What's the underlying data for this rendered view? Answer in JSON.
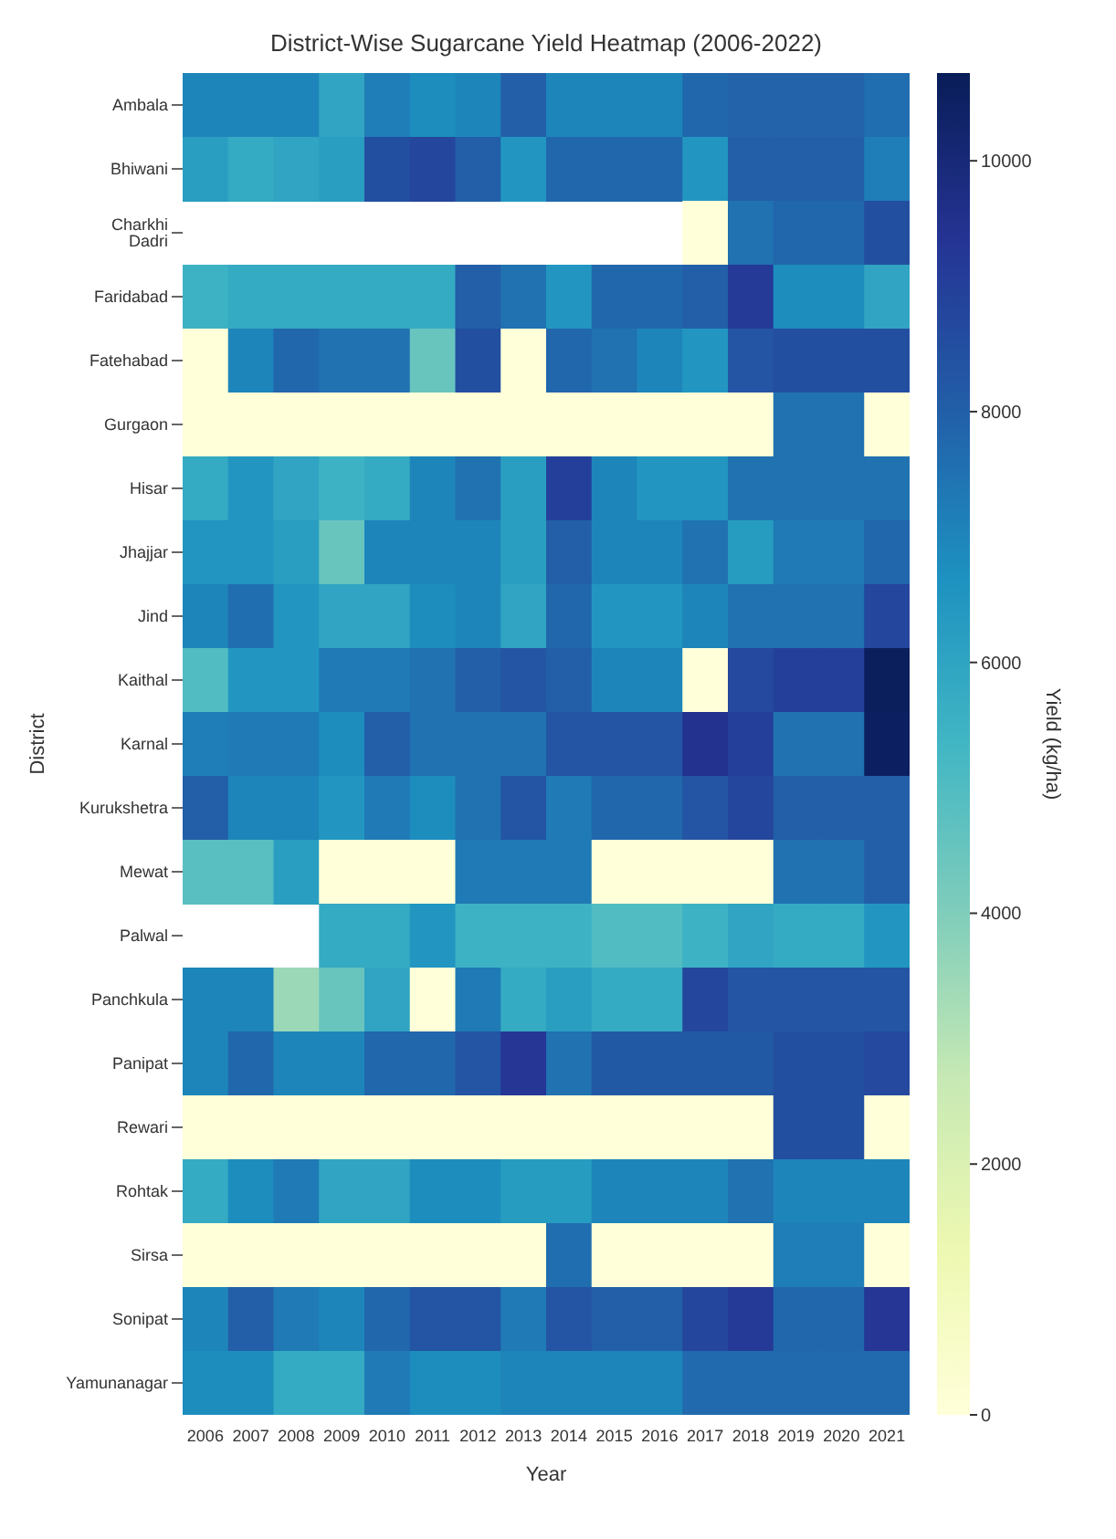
{
  "chart_data": {
    "type": "heatmap",
    "title": "District-Wise Sugarcane Yield Heatmap (2006-2022)",
    "xlabel": "Year",
    "ylabel": "District",
    "clabel": "Yield (kg/ha)",
    "categories": [
      "2006",
      "2007",
      "2008",
      "2009",
      "2010",
      "2011",
      "2012",
      "2013",
      "2014",
      "2015",
      "2016",
      "2017",
      "2018",
      "2019",
      "2020",
      "2021"
    ],
    "y_categories": [
      "Ambala",
      "Bhiwani",
      "Charkhi Dadri",
      "Faridabad",
      "Fatehabad",
      "Gurgaon",
      "Hisar",
      "Jhajjar",
      "Jind",
      "Kaithal",
      "Karnal",
      "Kurukshetra",
      "Mewat",
      "Palwal",
      "Panchkula",
      "Panipat",
      "Rewari",
      "Rohtak",
      "Sirsa",
      "Sonipat",
      "Yamunanagar"
    ],
    "cells": [
      [
        7000,
        7000,
        7000,
        6000,
        7200,
        6800,
        7000,
        8000,
        7000,
        7000,
        7000,
        7800,
        7900,
        7900,
        7900,
        7600
      ],
      [
        6200,
        5800,
        6000,
        6200,
        8500,
        8800,
        8000,
        6500,
        7800,
        7800,
        7800,
        6500,
        8000,
        8000,
        8000,
        7200
      ],
      [
        null,
        null,
        null,
        null,
        null,
        null,
        null,
        null,
        null,
        null,
        null,
        0,
        7500,
        7800,
        7800,
        8500
      ],
      [
        5500,
        5800,
        5800,
        5800,
        5800,
        5800,
        8000,
        7500,
        6500,
        7800,
        7800,
        8000,
        9200,
        6800,
        6800,
        6000
      ],
      [
        0,
        7000,
        7800,
        7500,
        7500,
        4500,
        8500,
        0,
        7800,
        7500,
        7000,
        6500,
        8300,
        8500,
        8500,
        8500
      ],
      [
        0,
        0,
        0,
        0,
        0,
        0,
        0,
        0,
        0,
        0,
        0,
        0,
        0,
        7500,
        7500,
        0
      ],
      [
        5800,
        6500,
        6000,
        5500,
        5800,
        7000,
        7500,
        6200,
        9000,
        7000,
        6500,
        6500,
        7500,
        7500,
        7500,
        7500
      ],
      [
        6500,
        6500,
        6200,
        4500,
        7000,
        7000,
        7000,
        6200,
        8000,
        7000,
        7000,
        7500,
        6300,
        7300,
        7300,
        7800
      ],
      [
        7000,
        7600,
        6500,
        6000,
        6000,
        6800,
        7000,
        6000,
        7800,
        6500,
        6500,
        7000,
        7500,
        7500,
        7500,
        8800
      ],
      [
        5000,
        6500,
        6500,
        7300,
        7300,
        7500,
        8000,
        8300,
        8000,
        7000,
        7000,
        0,
        8700,
        9000,
        9000,
        10600
      ],
      [
        7200,
        7300,
        7300,
        6800,
        8000,
        7500,
        7500,
        7500,
        8300,
        8300,
        8300,
        9500,
        9000,
        7500,
        7500,
        10500
      ],
      [
        8000,
        7000,
        7000,
        6500,
        7300,
        6800,
        7500,
        8300,
        7300,
        7800,
        7800,
        8300,
        8800,
        8000,
        8000,
        8000
      ],
      [
        4800,
        4800,
        6200,
        0,
        0,
        0,
        7300,
        7300,
        7300,
        0,
        0,
        0,
        0,
        7500,
        7500,
        8000
      ],
      [
        null,
        null,
        null,
        5800,
        5800,
        6500,
        5500,
        5500,
        5500,
        5000,
        5000,
        5500,
        6000,
        5800,
        5800,
        6500
      ],
      [
        7000,
        7000,
        3500,
        4500,
        6000,
        0,
        7300,
        5800,
        6200,
        5800,
        5800,
        8800,
        8300,
        8300,
        8300,
        8300
      ],
      [
        7000,
        7800,
        7000,
        7000,
        7800,
        7800,
        8300,
        9300,
        7500,
        8200,
        8200,
        8200,
        8200,
        8500,
        8500,
        8700
      ],
      [
        0,
        0,
        0,
        0,
        0,
        0,
        0,
        0,
        0,
        0,
        0,
        0,
        0,
        8500,
        8500,
        0
      ],
      [
        5800,
        6800,
        7300,
        6000,
        6000,
        6800,
        6800,
        6300,
        6300,
        7000,
        7000,
        7000,
        7500,
        7000,
        7000,
        7000
      ],
      [
        0,
        0,
        0,
        0,
        0,
        0,
        0,
        0,
        7600,
        0,
        0,
        0,
        0,
        7200,
        7200,
        0
      ],
      [
        7000,
        8000,
        7300,
        7000,
        7800,
        8300,
        8300,
        7300,
        8300,
        8000,
        8000,
        8800,
        9200,
        7800,
        7800,
        9300
      ],
      [
        6800,
        6800,
        5800,
        5800,
        7300,
        6800,
        6800,
        7000,
        7000,
        7000,
        7000,
        7700,
        7700,
        7700,
        7700,
        7700
      ]
    ],
    "clim": [
      0,
      10700
    ],
    "cticks": [
      0,
      2000,
      4000,
      6000,
      8000,
      10000
    ]
  }
}
